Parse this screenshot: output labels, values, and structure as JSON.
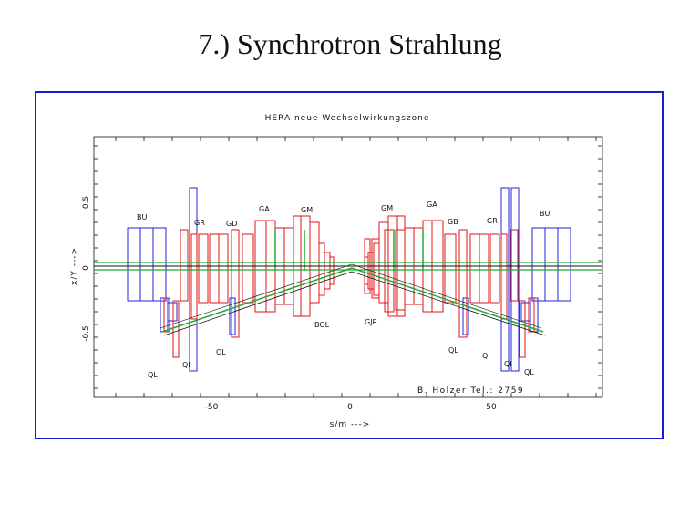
{
  "slide": {
    "title": "7.) Synchrotron Strahlung"
  },
  "colors": {
    "frame": "#1a1adb",
    "red": "#e01616",
    "blue": "#2222dd",
    "green": "#22aa33",
    "black": "#111111"
  },
  "plot": {
    "title": "HERA neue Wechselwirkungszone",
    "xlabel": "s/m --->",
    "ylabel": "x/Y --->",
    "credit": "B. Holzer Tel.: 2759",
    "x_ticks": [
      "-50",
      "0",
      "50"
    ],
    "y_ticks": [
      "0.5",
      "0",
      "-0.5"
    ],
    "magnet_labels": {
      "BU_left": "BU",
      "GR_left": "GR",
      "GD_left": "GD",
      "GA_left": "GA",
      "GM_left": "GM",
      "GM_right": "GM",
      "GA_right": "GA",
      "GB_right": "GB",
      "GR_right": "GR",
      "BU_right": "BU",
      "BOL": "BOL",
      "GJR": "GJR",
      "QL_ll": "QL",
      "QI_l": "QI",
      "QL_l": "QL",
      "QL_r": "QL",
      "QI_r": "QI",
      "QI_rr": "QI",
      "QL_rr": "QL"
    }
  }
}
